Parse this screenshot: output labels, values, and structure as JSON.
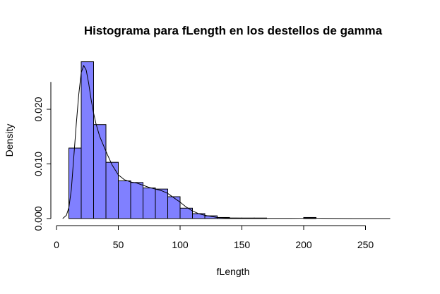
{
  "chart_data": {
    "type": "histogram",
    "title": "Histograma para fLength en los destellos de gamma",
    "xlabel": "fLength",
    "ylabel": "Density",
    "bar_color": "#8080ff",
    "bar_border_color": "#000000",
    "line_color": "#000000",
    "xlim": [
      0,
      280
    ],
    "ylim": [
      0,
      0.025
    ],
    "x_ticks": [
      0,
      50,
      100,
      150,
      200,
      250
    ],
    "x_tick_labels": [
      "0",
      "50",
      "100",
      "150",
      "200",
      "250"
    ],
    "y_ticks": [
      0.0,
      0.01,
      0.02
    ],
    "y_tick_labels": [
      "0.000",
      "0.010",
      "0.020"
    ],
    "bins": [
      {
        "start": 10,
        "end": 20,
        "density": 0.0129
      },
      {
        "start": 20,
        "end": 30,
        "density": 0.0287
      },
      {
        "start": 30,
        "end": 40,
        "density": 0.0172
      },
      {
        "start": 40,
        "end": 50,
        "density": 0.0103
      },
      {
        "start": 50,
        "end": 60,
        "density": 0.0069
      },
      {
        "start": 60,
        "end": 70,
        "density": 0.0066
      },
      {
        "start": 70,
        "end": 80,
        "density": 0.0056
      },
      {
        "start": 80,
        "end": 90,
        "density": 0.0054
      },
      {
        "start": 90,
        "end": 100,
        "density": 0.004
      },
      {
        "start": 100,
        "end": 110,
        "density": 0.0019
      },
      {
        "start": 110,
        "end": 120,
        "density": 0.0009
      },
      {
        "start": 120,
        "end": 130,
        "density": 0.0005
      },
      {
        "start": 130,
        "end": 140,
        "density": 0.0002
      },
      {
        "start": 140,
        "end": 150,
        "density": 0.0001
      },
      {
        "start": 150,
        "end": 160,
        "density": 0.0001
      },
      {
        "start": 160,
        "end": 170,
        "density": 0.0001
      },
      {
        "start": 170,
        "end": 180,
        "density": 0.0
      },
      {
        "start": 180,
        "end": 190,
        "density": 0.0
      },
      {
        "start": 190,
        "end": 200,
        "density": 0.0
      },
      {
        "start": 200,
        "end": 210,
        "density": 0.0002
      }
    ],
    "density_curve": {
      "x": [
        5,
        8,
        10,
        12,
        14,
        16,
        18,
        20,
        22,
        24,
        26,
        28,
        30,
        32,
        35,
        38,
        41,
        45,
        50,
        55,
        60,
        65,
        70,
        75,
        80,
        85,
        90,
        95,
        100,
        105,
        110,
        115,
        120,
        125,
        130,
        140,
        150,
        160,
        170,
        180,
        190,
        200,
        205,
        210,
        220,
        240,
        260,
        270
      ],
      "y": [
        0.0,
        0.0006,
        0.002,
        0.0053,
        0.0113,
        0.0173,
        0.0227,
        0.0267,
        0.028,
        0.0272,
        0.0248,
        0.0218,
        0.0193,
        0.0173,
        0.015,
        0.0134,
        0.0118,
        0.0098,
        0.008,
        0.0071,
        0.0067,
        0.0065,
        0.0061,
        0.0057,
        0.0054,
        0.0051,
        0.0046,
        0.0038,
        0.003,
        0.0021,
        0.0014,
        0.0009,
        0.0006,
        0.0004,
        0.0002,
        0.0001,
        7e-05,
        5e-05,
        4e-05,
        3e-05,
        3e-05,
        5e-05,
        0.0001,
        6e-05,
        3e-05,
        0.0,
        0.0,
        0.0
      ]
    }
  }
}
